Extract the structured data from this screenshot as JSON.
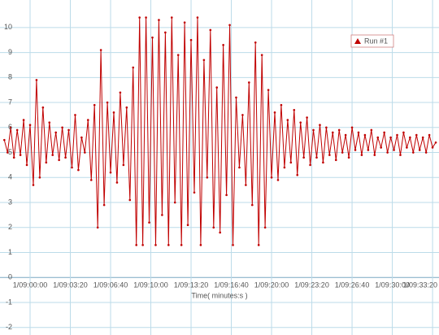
{
  "chart_data": {
    "type": "line",
    "x_label": "Time( minutes:s )",
    "xlim": [
      -149.5,
      2032
    ],
    "ylim": [
      -2.3,
      11.1
    ],
    "xticks": [
      {
        "value": 0,
        "label": "1/09:00:00"
      },
      {
        "value": 200,
        "label": "1/09:03:20"
      },
      {
        "value": 400,
        "label": "1/09:06:40"
      },
      {
        "value": 600,
        "label": "1/09:10:00"
      },
      {
        "value": 800,
        "label": "1/09:13:20"
      },
      {
        "value": 1000,
        "label": "1/09:16:40"
      },
      {
        "value": 1200,
        "label": "1/09:20:00"
      },
      {
        "value": 1400,
        "label": "1/09:23:20"
      },
      {
        "value": 1600,
        "label": "1/09:26:40"
      },
      {
        "value": 1800,
        "label": "1/09:30:00"
      },
      {
        "value": 2000,
        "label": "1/09:33:20"
      }
    ],
    "yticks": [
      -2,
      -1,
      0,
      1,
      2,
      3,
      4,
      5,
      6,
      7,
      8,
      9,
      10
    ],
    "grid": true,
    "legend": "top-right",
    "x": [
      -128,
      -112,
      -96,
      -80,
      -64,
      -48,
      -32,
      -16,
      0,
      16,
      32,
      48,
      64,
      80,
      96,
      112,
      128,
      144,
      160,
      176,
      192,
      208,
      224,
      240,
      256,
      272,
      288,
      304,
      320,
      336,
      352,
      368,
      384,
      400,
      416,
      432,
      448,
      464,
      480,
      496,
      512,
      528,
      544,
      560,
      576,
      592,
      608,
      624,
      640,
      656,
      672,
      688,
      704,
      720,
      736,
      752,
      768,
      784,
      800,
      816,
      832,
      848,
      864,
      880,
      896,
      912,
      928,
      944,
      960,
      976,
      992,
      1008,
      1024,
      1040,
      1056,
      1072,
      1088,
      1104,
      1120,
      1136,
      1152,
      1168,
      1184,
      1200,
      1216,
      1232,
      1248,
      1264,
      1280,
      1296,
      1312,
      1328,
      1344,
      1360,
      1376,
      1392,
      1408,
      1424,
      1440,
      1456,
      1472,
      1488,
      1504,
      1520,
      1536,
      1552,
      1568,
      1584,
      1600,
      1616,
      1632,
      1648,
      1664,
      1680,
      1696,
      1712,
      1728,
      1744,
      1760,
      1776,
      1792,
      1808,
      1824,
      1840,
      1856,
      1872,
      1888,
      1904,
      1920,
      1936,
      1952,
      1968,
      1984,
      2000,
      2016
    ],
    "series": [
      {
        "name": "Run #1",
        "color": "#c00000",
        "values": [
          5.5,
          5.0,
          6.0,
          4.8,
          5.9,
          4.9,
          6.3,
          4.5,
          6.1,
          3.7,
          7.9,
          4.0,
          6.8,
          4.6,
          6.2,
          4.9,
          5.8,
          4.7,
          6.0,
          4.8,
          5.9,
          4.4,
          6.5,
          4.3,
          5.6,
          5.0,
          6.3,
          3.9,
          6.9,
          2.0,
          9.1,
          2.9,
          7.0,
          4.2,
          6.6,
          3.8,
          7.4,
          4.5,
          6.8,
          3.1,
          8.4,
          1.3,
          10.4,
          1.3,
          10.4,
          2.2,
          9.6,
          1.3,
          10.3,
          2.5,
          9.8,
          1.3,
          10.4,
          3.0,
          8.9,
          1.3,
          10.2,
          2.1,
          9.5,
          3.4,
          10.4,
          1.3,
          8.7,
          4.0,
          9.9,
          2.0,
          7.6,
          1.8,
          9.3,
          3.3,
          10.1,
          1.3,
          7.2,
          4.4,
          6.5,
          3.7,
          7.8,
          2.9,
          9.4,
          1.3,
          8.9,
          2.0,
          7.5,
          4.0,
          6.6,
          3.9,
          6.9,
          4.4,
          6.3,
          4.6,
          6.7,
          4.1,
          6.2,
          4.8,
          6.4,
          4.5,
          5.9,
          4.8,
          6.1,
          4.6,
          6.0,
          4.9,
          5.8,
          4.7,
          5.9,
          5.0,
          5.7,
          4.8,
          6.0,
          5.1,
          5.8,
          4.9,
          5.7,
          5.1,
          5.9,
          4.9,
          5.6,
          5.2,
          5.8,
          5.0,
          5.6,
          5.1,
          5.7,
          4.9,
          5.8,
          5.2,
          5.6,
          5.0,
          5.7,
          5.1,
          5.6,
          5.0,
          5.7,
          5.2,
          5.4
        ]
      }
    ]
  }
}
